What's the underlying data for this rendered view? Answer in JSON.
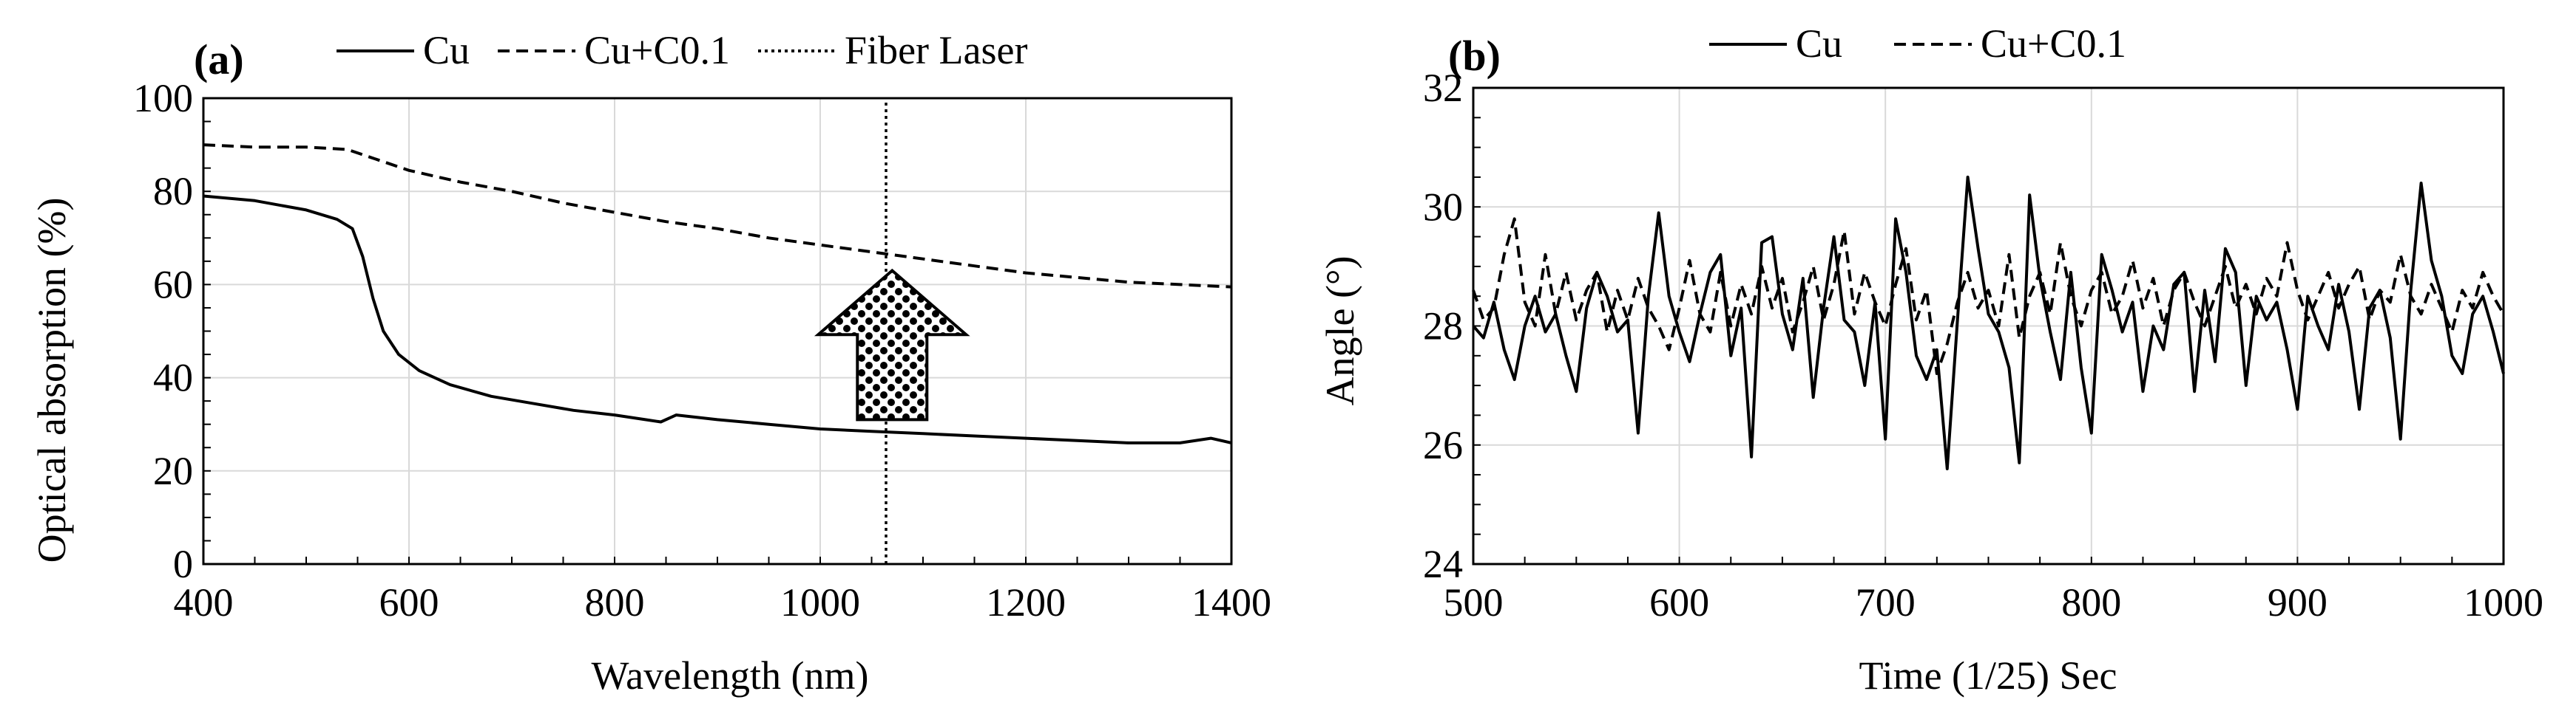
{
  "figure": {
    "line_color": "#000000",
    "grid_color": "#d9d9d9",
    "arrow_fill_color": "#ffffff",
    "arrow_dot_color": "#000000"
  },
  "chart_data": [
    {
      "panel_label": "(a)",
      "type": "line",
      "title": "",
      "xlabel": "Wavelength (nm)",
      "ylabel": "Optical absorption (%)",
      "xlim": [
        400,
        1400
      ],
      "ylim": [
        0,
        100
      ],
      "xticks": [
        "400",
        "600",
        "800",
        "1000",
        "1200",
        "1400"
      ],
      "yticks": [
        "0",
        "20",
        "40",
        "60",
        "80",
        "100"
      ],
      "grid": true,
      "legend_position": "top",
      "series": [
        {
          "name": "Cu",
          "style": "solid",
          "x": [
            400,
            450,
            500,
            530,
            545,
            555,
            565,
            575,
            590,
            610,
            640,
            680,
            720,
            760,
            800,
            830,
            845,
            860,
            900,
            950,
            1000,
            1050,
            1100,
            1150,
            1200,
            1250,
            1300,
            1350,
            1380,
            1400
          ],
          "y": [
            79,
            78,
            76,
            74,
            72,
            66,
            57,
            50,
            45,
            41.5,
            38.5,
            36,
            34.5,
            33,
            32,
            31,
            30.5,
            32,
            31,
            30,
            29,
            28.5,
            28,
            27.5,
            27,
            26.5,
            26,
            26,
            27,
            26
          ]
        },
        {
          "name": "Cu+C0.1",
          "style": "dashed",
          "x": [
            400,
            450,
            500,
            540,
            560,
            580,
            600,
            650,
            700,
            750,
            800,
            850,
            900,
            950,
            1000,
            1050,
            1100,
            1150,
            1200,
            1250,
            1300,
            1350,
            1400
          ],
          "y": [
            90,
            89.5,
            89.5,
            89,
            87.5,
            86,
            84.5,
            82,
            80,
            77.5,
            75.5,
            73.5,
            72,
            70,
            68.5,
            67,
            65.5,
            64,
            62.5,
            61.5,
            60.5,
            60,
            59.5
          ]
        },
        {
          "name": "Fiber Laser",
          "style": "dotted",
          "x": [
            1064,
            1064
          ],
          "y": [
            0,
            100
          ]
        }
      ],
      "annotations": [
        {
          "type": "block-arrow-up",
          "x": 1070,
          "y_from": 31,
          "y_to": 63,
          "fill": "dotted pattern"
        }
      ]
    },
    {
      "panel_label": "(b)",
      "type": "line",
      "title": "",
      "xlabel": "Time (1/25) Sec",
      "ylabel": "Angle (°)",
      "xlim": [
        500,
        1000
      ],
      "ylim": [
        24,
        32
      ],
      "xticks": [
        "500",
        "600",
        "700",
        "800",
        "900",
        "1000"
      ],
      "yticks": [
        "24",
        "26",
        "28",
        "30",
        "32"
      ],
      "grid": true,
      "legend_position": "top",
      "series": [
        {
          "name": "Cu",
          "style": "solid",
          "x": [
            500,
            505,
            510,
            515,
            520,
            525,
            530,
            535,
            540,
            545,
            550,
            555,
            560,
            565,
            570,
            575,
            580,
            585,
            590,
            595,
            600,
            605,
            610,
            615,
            620,
            625,
            630,
            635,
            640,
            645,
            650,
            655,
            660,
            665,
            670,
            675,
            680,
            685,
            690,
            695,
            700,
            705,
            710,
            715,
            720,
            725,
            730,
            735,
            740,
            745,
            750,
            755,
            760,
            765,
            770,
            775,
            780,
            785,
            790,
            795,
            800,
            805,
            810,
            815,
            820,
            825,
            830,
            835,
            840,
            845,
            850,
            855,
            860,
            865,
            870,
            875,
            880,
            885,
            890,
            895,
            900,
            905,
            910,
            915,
            920,
            925,
            930,
            935,
            940,
            945,
            950,
            955,
            960,
            965,
            970,
            975,
            980,
            985,
            990,
            995,
            1000
          ],
          "y": [
            28.0,
            27.8,
            28.4,
            27.6,
            27.1,
            28.0,
            28.5,
            27.9,
            28.2,
            27.5,
            26.9,
            28.3,
            28.9,
            28.5,
            27.9,
            28.1,
            26.2,
            28.5,
            29.9,
            28.5,
            27.9,
            27.4,
            28.2,
            28.9,
            29.2,
            27.5,
            28.3,
            25.8,
            29.4,
            29.5,
            28.2,
            27.6,
            28.8,
            26.8,
            28.3,
            29.5,
            28.1,
            27.9,
            27.0,
            28.4,
            26.1,
            29.8,
            28.9,
            27.5,
            27.1,
            27.6,
            25.6,
            28.1,
            30.5,
            29.3,
            28.2,
            27.9,
            27.3,
            25.7,
            30.2,
            28.8,
            27.9,
            27.1,
            28.9,
            27.3,
            26.2,
            29.2,
            28.6,
            27.9,
            28.4,
            26.9,
            28.0,
            27.6,
            28.7,
            28.9,
            26.9,
            28.6,
            27.4,
            29.3,
            28.9,
            27.0,
            28.5,
            28.1,
            28.4,
            27.6,
            26.6,
            28.5,
            28.0,
            27.6,
            28.7,
            27.9,
            26.6,
            28.3,
            28.6,
            27.8,
            26.1,
            28.6,
            30.4,
            29.1,
            28.5,
            27.5,
            27.2,
            28.2,
            28.5,
            27.9,
            27.2
          ]
        },
        {
          "name": "Cu+C0.1",
          "style": "dashed",
          "x": [
            500,
            505,
            510,
            515,
            520,
            525,
            530,
            535,
            540,
            545,
            550,
            555,
            560,
            565,
            570,
            575,
            580,
            585,
            590,
            595,
            600,
            605,
            610,
            615,
            620,
            625,
            630,
            635,
            640,
            645,
            650,
            655,
            660,
            665,
            670,
            675,
            680,
            685,
            690,
            695,
            700,
            705,
            710,
            715,
            720,
            725,
            730,
            735,
            740,
            745,
            750,
            755,
            760,
            765,
            770,
            775,
            780,
            785,
            790,
            795,
            800,
            805,
            810,
            815,
            820,
            825,
            830,
            835,
            840,
            845,
            850,
            855,
            860,
            865,
            870,
            875,
            880,
            885,
            890,
            895,
            900,
            905,
            910,
            915,
            920,
            925,
            930,
            935,
            940,
            945,
            950,
            955,
            960,
            965,
            970,
            975,
            980,
            985,
            990,
            995,
            1000
          ],
          "y": [
            28.6,
            28.1,
            28.3,
            29.2,
            29.8,
            28.4,
            28.0,
            29.2,
            28.2,
            28.9,
            28.1,
            28.6,
            28.9,
            27.9,
            28.6,
            28.1,
            28.8,
            28.3,
            28.0,
            27.6,
            28.3,
            29.1,
            28.2,
            27.9,
            28.9,
            28.0,
            28.7,
            28.2,
            29.0,
            28.3,
            28.8,
            27.9,
            28.4,
            29.0,
            28.1,
            28.7,
            29.6,
            28.2,
            28.9,
            28.4,
            28.0,
            28.7,
            29.3,
            28.1,
            28.6,
            27.2,
            27.7,
            28.4,
            28.9,
            28.3,
            28.6,
            28.0,
            29.2,
            27.8,
            28.5,
            28.9,
            28.2,
            29.4,
            28.5,
            28.0,
            28.6,
            28.9,
            28.2,
            28.5,
            29.1,
            28.3,
            28.8,
            28.0,
            28.6,
            28.9,
            28.4,
            28.0,
            28.5,
            29.0,
            28.3,
            28.7,
            28.2,
            28.8,
            28.5,
            29.4,
            28.6,
            28.1,
            28.5,
            28.9,
            28.3,
            28.7,
            29.0,
            28.1,
            28.6,
            28.4,
            29.2,
            28.5,
            28.2,
            28.7,
            28.3,
            27.9,
            28.6,
            28.3,
            28.9,
            28.5,
            28.2
          ]
        }
      ]
    }
  ]
}
